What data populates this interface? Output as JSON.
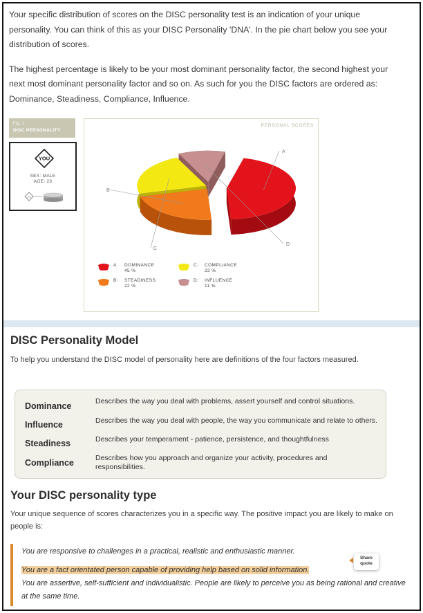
{
  "intro": {
    "p1": "Your specific distribution of scores on the DISC personality test is an indication of your unique personality. You can think of this as your DISC Personality 'DNA'. In the pie chart below you see your distribution of scores.",
    "p2": "The highest percentage is likely to be your most dominant personality factor, the second highest your next most dominant personality factor and so on. As such for you the DISC factors are ordered as: Dominance, Steadiness, Compliance, Influence."
  },
  "figure": {
    "tag_line1": "Fig. 1",
    "tag_line2": "DISC PERSONALITY",
    "you_label": "YOU",
    "sex": "SEX: MALE",
    "age": "AGE: 23",
    "coin_label": "DISC",
    "panel_header": "PERSONAL SCORES"
  },
  "chart_data": {
    "type": "pie",
    "title": "PERSONAL SCORES",
    "slices": [
      {
        "letter": "A",
        "name": "DOMINANCE",
        "value": 45,
        "label": "45 %",
        "color": "#e3131b"
      },
      {
        "letter": "B",
        "name": "STEADINESS",
        "value": 22,
        "label": "22 %",
        "color": "#f07a1c"
      },
      {
        "letter": "C",
        "name": "COMPLIANCE",
        "value": 22,
        "label": "22 %",
        "color": "#f3e812"
      },
      {
        "letter": "D",
        "name": "INFLUENCE",
        "value": 11,
        "label": "11 %",
        "color": "#c78f8f"
      }
    ]
  },
  "model": {
    "heading": "DISC Personality Model",
    "intro": "To help you understand the DISC model of personality here are definitions of the four factors measured.",
    "definitions": [
      {
        "term": "Dominance",
        "desc": "Describes the way you deal with problems, assert yourself and control situations."
      },
      {
        "term": "Influence",
        "desc": "Describes the way you deal with people, the way you communicate and relate to others."
      },
      {
        "term": "Steadiness",
        "desc": "Describes your temperament - patience, persistence, and thoughtfulness"
      },
      {
        "term": "Compliance",
        "desc": "Describes how you approach and organize your activity, procedures and responsibilities."
      }
    ]
  },
  "type_section": {
    "heading": "Your DISC personality type",
    "intro": "Your unique sequence of scores characterizes you in a specific way. The positive impact you are likely to make on people is:",
    "quote_lines": [
      "You are responsive to challenges in a practical, realistic and enthusiastic manner.",
      "You are a fact orientated person capable of providing help based on solid information.",
      "You are assertive, self-sufficient and individualistic. People are likely to perceive you as being rational and creative at the same time."
    ],
    "share_label": "Share quote"
  }
}
